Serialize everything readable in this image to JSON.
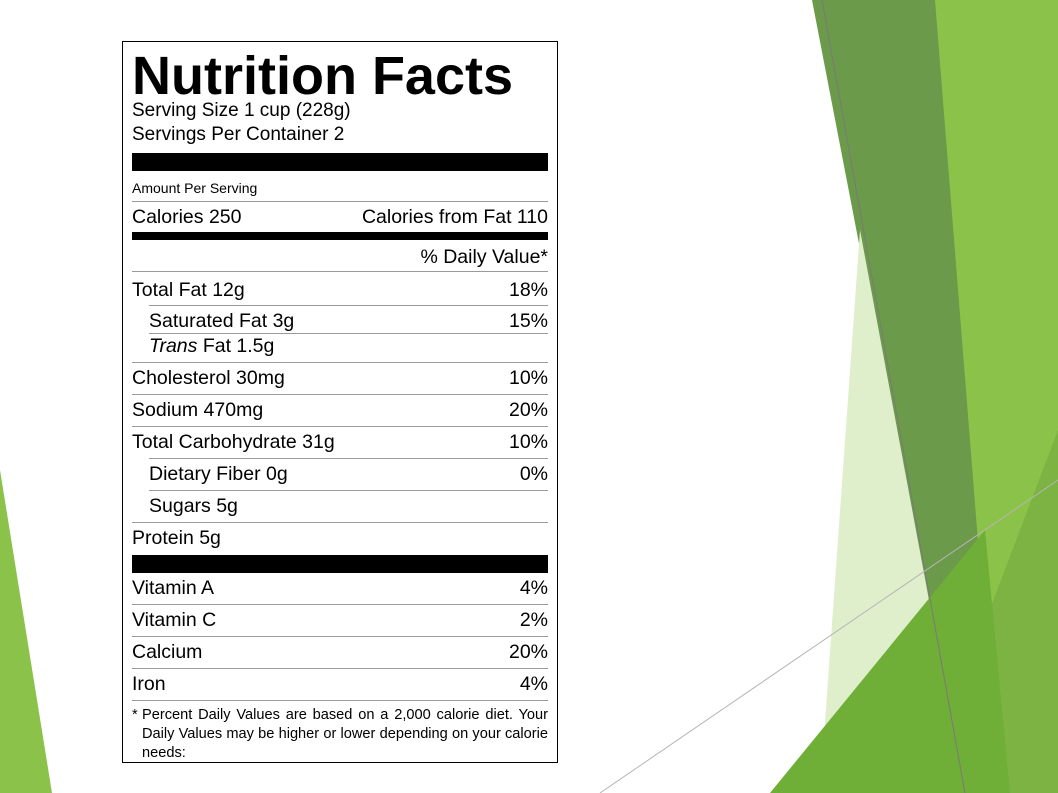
{
  "colors": {
    "green_light": "#8bc34a",
    "green_mid": "#7cb342",
    "green_dark": "#5f9b3c",
    "green_pale": "#dfeecb"
  },
  "label": {
    "title": "Nutrition Facts",
    "serving_size": "Serving Size 1 cup (228g)",
    "servings_per_container": "Servings Per Container 2",
    "amount_per_serving": "Amount Per Serving",
    "calories": "Calories 250",
    "calories_from_fat": "Calories from Fat 110",
    "daily_value_header": "% Daily Value*",
    "nutrients": [
      {
        "name": "Total Fat 12g",
        "dv": "18%"
      },
      {
        "name": "Saturated Fat 3g",
        "dv": "15%"
      },
      {
        "name_italic": "Trans",
        "name_rest": " Fat 1.5g",
        "dv": ""
      },
      {
        "name": "Cholesterol 30mg",
        "dv": "10%"
      },
      {
        "name": "Sodium 470mg",
        "dv": "20%"
      },
      {
        "name": "Total Carbohydrate 31g",
        "dv": "10%"
      },
      {
        "name": "Dietary Fiber 0g",
        "dv": "0%"
      },
      {
        "name": "Sugars 5g",
        "dv": ""
      },
      {
        "name": "Protein 5g",
        "dv": ""
      }
    ],
    "vitamins": [
      {
        "name": "Vitamin A",
        "dv": "4%"
      },
      {
        "name": "Vitamin C",
        "dv": "2%"
      },
      {
        "name": "Calcium",
        "dv": "20%"
      },
      {
        "name": "Iron",
        "dv": "4%"
      }
    ],
    "footnote_mark": "*",
    "footnote": "Percent Daily Values are based on a 2,000 calorie diet. Your Daily Values may be higher or lower depending on your calorie needs:"
  }
}
